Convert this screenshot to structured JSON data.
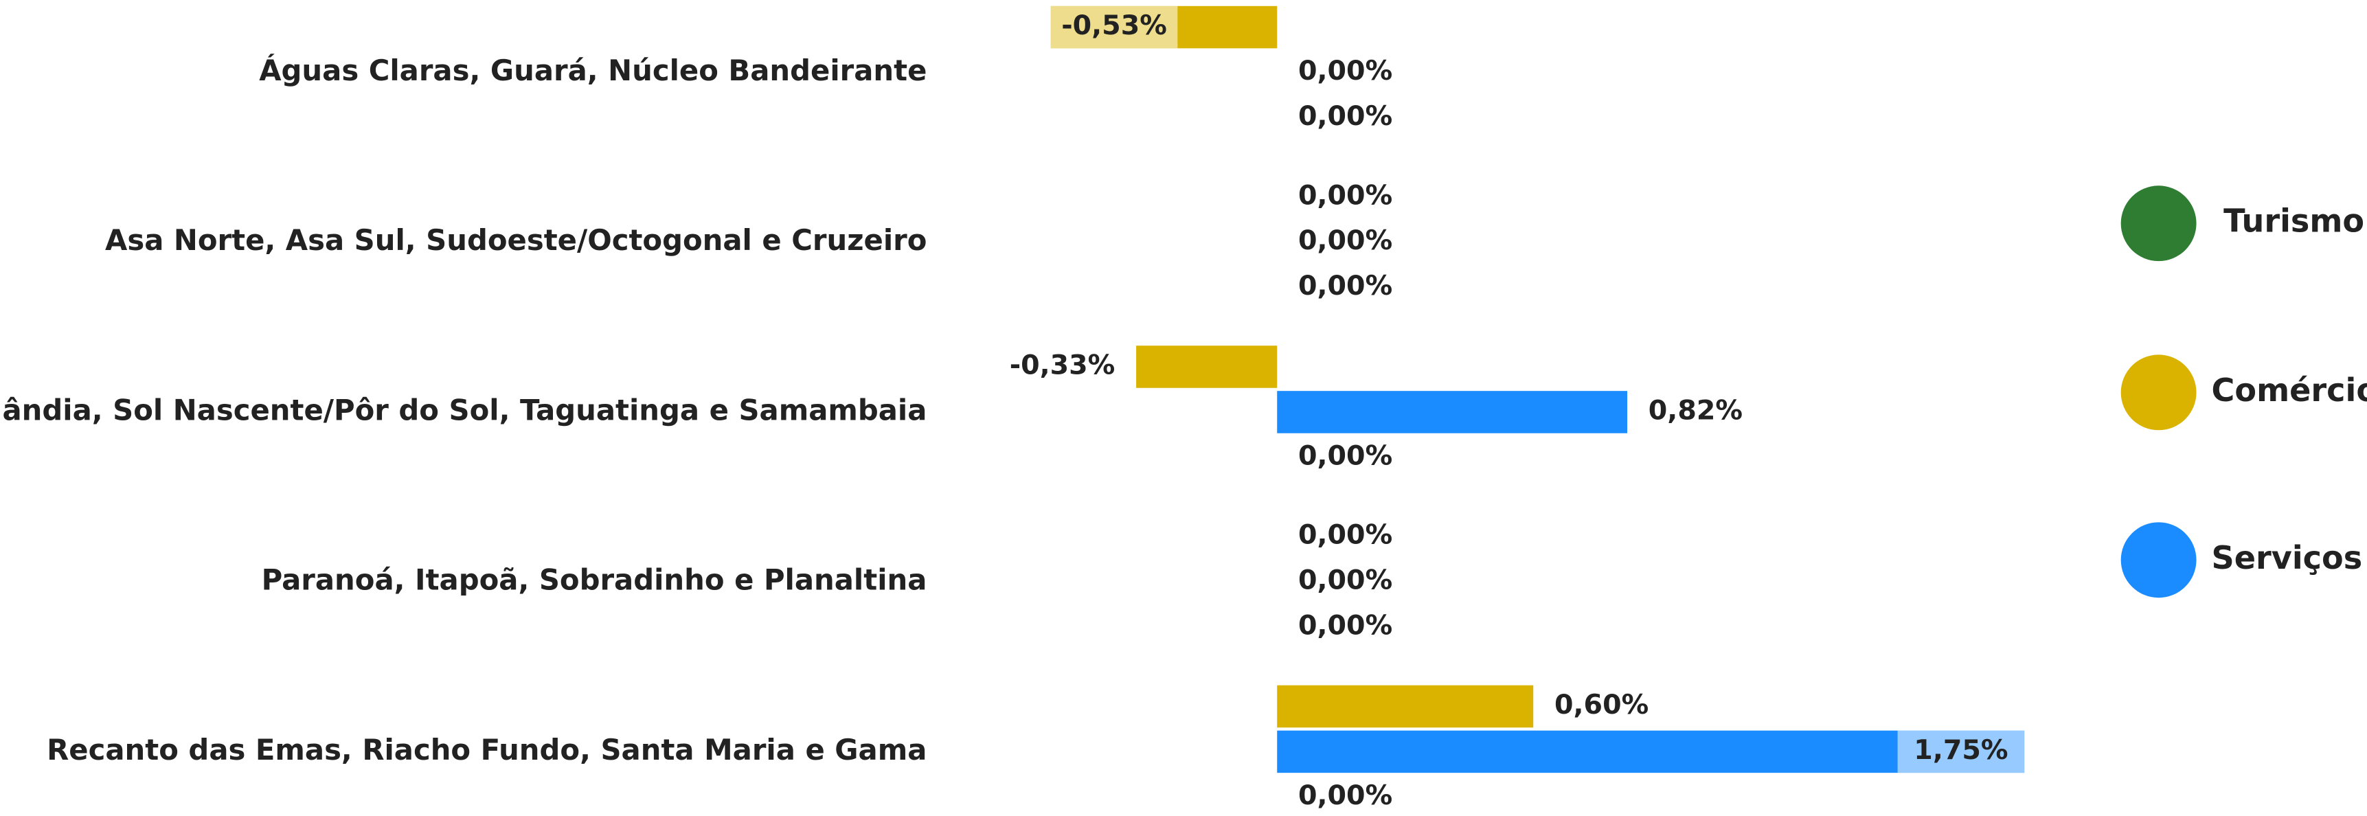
{
  "chart_data": {
    "type": "bar",
    "orientation": "horizontal",
    "categories": [
      "Águas Claras, Guará, Núcleo Bandeirante",
      "Asa Norte, Asa Sul, Sudoeste/Octogonal e Cruzeiro",
      "Ceilândia, Sol Nascente/Pôr do Sol, Taguatinga e Samambaia",
      "Paranoá, Itapoã, Sobradinho e Planaltina",
      "Recanto das Emas, Riacho Fundo, Santa Maria e Gama"
    ],
    "series": [
      {
        "name": "Comércio",
        "color": "#d9b300",
        "values": [
          -0.53,
          0,
          -0.33,
          0,
          0.6
        ],
        "value_labels": [
          "-0,53%",
          "0,00%",
          "-0,33%",
          "0,00%",
          "0,60%"
        ]
      },
      {
        "name": "Serviços",
        "color": "#1a8cff",
        "values": [
          0,
          0,
          0.82,
          0,
          1.75
        ],
        "value_labels": [
          "0,00%",
          "0,00%",
          "0,82%",
          "0,00%",
          "1,75%"
        ]
      },
      {
        "name": "Turismo",
        "color": "#2e7d32",
        "values": [
          0,
          0,
          0,
          0,
          0
        ],
        "value_labels": [
          "0,00%",
          "0,00%",
          "0,00%",
          "0,00%",
          "0,00%"
        ]
      }
    ],
    "legend_order": [
      "Turismo",
      "Comércio",
      "Serviços"
    ]
  }
}
